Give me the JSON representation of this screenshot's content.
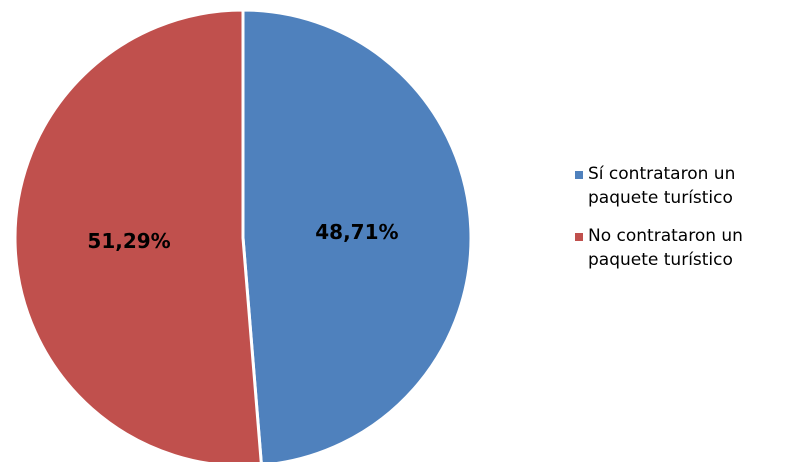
{
  "chart_data": {
    "type": "pie",
    "slices": [
      {
        "label": "Sí contrataron un paquete turístico",
        "value": 48.71,
        "display": "48,71%",
        "color": "#4F81BD"
      },
      {
        "label": "No contrataron un paquete turístico",
        "value": 51.29,
        "display": "51,29%",
        "color": "#C0504D"
      }
    ],
    "legend_position": "right"
  }
}
